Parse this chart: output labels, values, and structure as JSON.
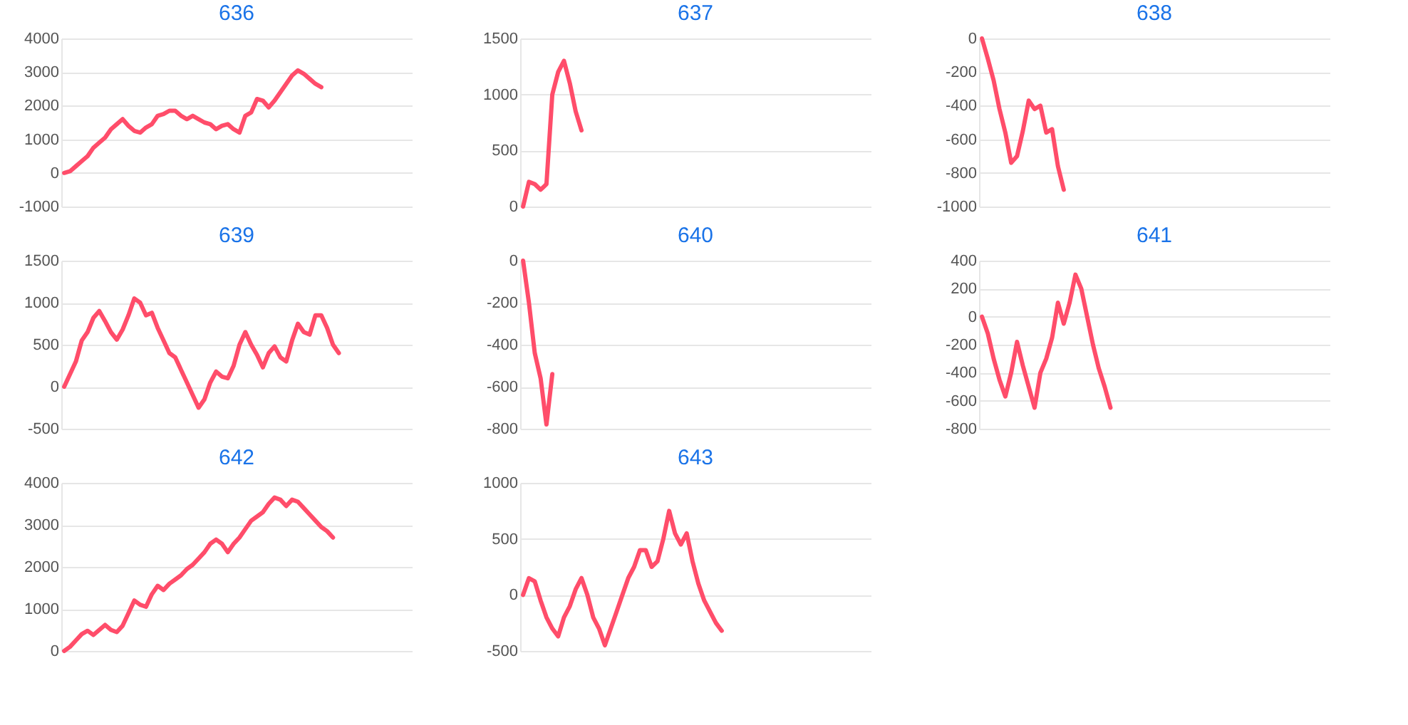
{
  "chart_data": [
    {
      "type": "line",
      "title": "636",
      "grid": "y",
      "tick_labels": "y",
      "ylim": [
        -1000,
        4000
      ],
      "yticks": [
        -1000,
        0,
        1000,
        2000,
        3000,
        4000
      ],
      "categories": [
        null,
        null,
        null,
        null,
        null,
        null,
        null,
        null,
        null,
        null,
        null,
        null,
        null,
        null,
        null,
        null,
        null,
        null,
        null,
        null,
        null,
        null,
        null,
        null,
        null,
        null,
        null,
        null,
        null,
        null,
        null,
        null,
        null,
        null,
        null,
        null,
        null,
        null,
        null,
        null,
        null,
        null,
        null,
        null,
        null,
        null,
        null,
        null,
        null,
        null,
        null,
        null,
        null,
        null,
        null,
        null,
        null,
        null,
        null,
        null
      ],
      "series": [
        {
          "color": "#ff4d6a",
          "values": [
            0,
            50,
            200,
            350,
            500,
            750,
            900,
            1050,
            1300,
            1450,
            1600,
            1400,
            1250,
            1200,
            1350,
            1450,
            1700,
            1750,
            1850,
            1850,
            1700,
            1600,
            1700,
            1600,
            1500,
            1450,
            1300,
            1400,
            1450,
            1300,
            1200,
            1700,
            1800,
            2200,
            2150,
            1950,
            2150,
            2400,
            2650,
            2900,
            3050,
            2950,
            2800,
            2650,
            2550,
            null,
            null,
            null,
            null,
            null,
            null,
            null,
            null,
            null,
            null,
            null,
            null,
            null,
            null,
            null
          ]
        }
      ]
    },
    {
      "type": "line",
      "title": "637",
      "grid": "y",
      "tick_labels": "y",
      "ylim": [
        0,
        1500
      ],
      "yticks": [
        0,
        500,
        1000,
        1500
      ],
      "categories": [
        null,
        null,
        null,
        null,
        null,
        null,
        null,
        null,
        null,
        null,
        null,
        null,
        null,
        null,
        null,
        null,
        null,
        null,
        null,
        null,
        null,
        null,
        null,
        null,
        null,
        null,
        null,
        null,
        null,
        null,
        null,
        null,
        null,
        null,
        null,
        null,
        null,
        null,
        null,
        null,
        null,
        null,
        null,
        null,
        null,
        null,
        null,
        null,
        null,
        null,
        null,
        null,
        null,
        null,
        null,
        null,
        null,
        null,
        null,
        null
      ],
      "series": [
        {
          "color": "#ff4d6a",
          "values": [
            0,
            220,
            200,
            150,
            200,
            1000,
            1200,
            1300,
            1100,
            850,
            680,
            null,
            null,
            null,
            null,
            null,
            null,
            null,
            null,
            null,
            null,
            null,
            null,
            null,
            null,
            null,
            null,
            null,
            null,
            null,
            null,
            null,
            null,
            null,
            null,
            null,
            null,
            null,
            null,
            null,
            null,
            null,
            null,
            null,
            null,
            null,
            null,
            null,
            null,
            null,
            null,
            null,
            null,
            null,
            null,
            null,
            null,
            null,
            null,
            null
          ]
        }
      ]
    },
    {
      "type": "line",
      "title": "638",
      "grid": "y",
      "tick_labels": "y",
      "ylim": [
        -1000,
        0
      ],
      "yticks": [
        -1000,
        -800,
        -600,
        -400,
        -200,
        0
      ],
      "categories": [
        null,
        null,
        null,
        null,
        null,
        null,
        null,
        null,
        null,
        null,
        null,
        null,
        null,
        null,
        null,
        null,
        null,
        null,
        null,
        null,
        null,
        null,
        null,
        null,
        null,
        null,
        null,
        null,
        null,
        null,
        null,
        null,
        null,
        null,
        null,
        null,
        null,
        null,
        null,
        null,
        null,
        null,
        null,
        null,
        null,
        null,
        null,
        null,
        null,
        null,
        null,
        null,
        null,
        null,
        null,
        null,
        null,
        null,
        null,
        null
      ],
      "series": [
        {
          "color": "#ff4d6a",
          "values": [
            0,
            -120,
            -250,
            -420,
            -560,
            -740,
            -700,
            -550,
            -370,
            -420,
            -400,
            -560,
            -540,
            -760,
            -900,
            null,
            null,
            null,
            null,
            null,
            null,
            null,
            null,
            null,
            null,
            null,
            null,
            null,
            null,
            null,
            null,
            null,
            null,
            null,
            null,
            null,
            null,
            null,
            null,
            null,
            null,
            null,
            null,
            null,
            null,
            null,
            null,
            null,
            null,
            null,
            null,
            null,
            null,
            null,
            null,
            null,
            null,
            null,
            null,
            null
          ]
        }
      ]
    },
    {
      "type": "line",
      "title": "639",
      "grid": "y",
      "tick_labels": "y",
      "ylim": [
        -500,
        1500
      ],
      "yticks": [
        -500,
        0,
        500,
        1000,
        1500
      ],
      "categories": [
        null,
        null,
        null,
        null,
        null,
        null,
        null,
        null,
        null,
        null,
        null,
        null,
        null,
        null,
        null,
        null,
        null,
        null,
        null,
        null,
        null,
        null,
        null,
        null,
        null,
        null,
        null,
        null,
        null,
        null,
        null,
        null,
        null,
        null,
        null,
        null,
        null,
        null,
        null,
        null,
        null,
        null,
        null,
        null,
        null,
        null,
        null,
        null,
        null,
        null,
        null,
        null,
        null,
        null,
        null,
        null,
        null,
        null,
        null,
        null
      ],
      "series": [
        {
          "color": "#ff4d6a",
          "values": [
            0,
            150,
            300,
            550,
            650,
            820,
            900,
            780,
            650,
            560,
            680,
            850,
            1050,
            1000,
            850,
            880,
            700,
            550,
            400,
            350,
            200,
            50,
            -100,
            -250,
            -150,
            50,
            180,
            120,
            100,
            250,
            500,
            650,
            500,
            380,
            230,
            400,
            480,
            350,
            300,
            550,
            750,
            650,
            620,
            850,
            850,
            700,
            500,
            400,
            null,
            null,
            null,
            null,
            null,
            null,
            null,
            null,
            null,
            null,
            null,
            null
          ]
        }
      ]
    },
    {
      "type": "line",
      "title": "640",
      "grid": "y",
      "tick_labels": "y",
      "ylim": [
        -800,
        0
      ],
      "yticks": [
        -800,
        -600,
        -400,
        -200,
        0
      ],
      "categories": [
        null,
        null,
        null,
        null,
        null,
        null,
        null,
        null,
        null,
        null,
        null,
        null,
        null,
        null,
        null,
        null,
        null,
        null,
        null,
        null,
        null,
        null,
        null,
        null,
        null,
        null,
        null,
        null,
        null,
        null,
        null,
        null,
        null,
        null,
        null,
        null,
        null,
        null,
        null,
        null,
        null,
        null,
        null,
        null,
        null,
        null,
        null,
        null,
        null,
        null,
        null,
        null,
        null,
        null,
        null,
        null,
        null,
        null,
        null,
        null
      ],
      "series": [
        {
          "color": "#ff4d6a",
          "values": [
            0,
            -200,
            -440,
            -560,
            -780,
            -540,
            null,
            null,
            null,
            null,
            null,
            null,
            null,
            null,
            null,
            null,
            null,
            null,
            null,
            null,
            null,
            null,
            null,
            null,
            null,
            null,
            null,
            null,
            null,
            null,
            null,
            null,
            null,
            null,
            null,
            null,
            null,
            null,
            null,
            null,
            null,
            null,
            null,
            null,
            null,
            null,
            null,
            null,
            null,
            null,
            null,
            null,
            null,
            null,
            null,
            null,
            null,
            null,
            null,
            null
          ]
        }
      ]
    },
    {
      "type": "line",
      "title": "641",
      "grid": "y",
      "tick_labels": "y",
      "ylim": [
        -800,
        400
      ],
      "yticks": [
        -800,
        -600,
        -400,
        -200,
        0,
        200,
        400
      ],
      "categories": [
        null,
        null,
        null,
        null,
        null,
        null,
        null,
        null,
        null,
        null,
        null,
        null,
        null,
        null,
        null,
        null,
        null,
        null,
        null,
        null,
        null,
        null,
        null,
        null,
        null,
        null,
        null,
        null,
        null,
        null,
        null,
        null,
        null,
        null,
        null,
        null,
        null,
        null,
        null,
        null,
        null,
        null,
        null,
        null,
        null,
        null,
        null,
        null,
        null,
        null,
        null,
        null,
        null,
        null,
        null,
        null,
        null,
        null,
        null,
        null
      ],
      "series": [
        {
          "color": "#ff4d6a",
          "values": [
            0,
            -120,
            -300,
            -450,
            -570,
            -400,
            -180,
            -350,
            -500,
            -650,
            -400,
            -300,
            -150,
            100,
            -50,
            100,
            300,
            200,
            0,
            -200,
            -370,
            -500,
            -650,
            null,
            null,
            null,
            null,
            null,
            null,
            null,
            null,
            null,
            null,
            null,
            null,
            null,
            null,
            null,
            null,
            null,
            null,
            null,
            null,
            null,
            null,
            null,
            null,
            null,
            null,
            null,
            null,
            null,
            null,
            null,
            null,
            null,
            null,
            null,
            null,
            null
          ]
        }
      ]
    },
    {
      "type": "line",
      "title": "642",
      "grid": "y",
      "tick_labels": "y",
      "ylim": [
        0,
        4000
      ],
      "yticks": [
        0,
        1000,
        2000,
        3000,
        4000
      ],
      "categories": [
        null,
        null,
        null,
        null,
        null,
        null,
        null,
        null,
        null,
        null,
        null,
        null,
        null,
        null,
        null,
        null,
        null,
        null,
        null,
        null,
        null,
        null,
        null,
        null,
        null,
        null,
        null,
        null,
        null,
        null,
        null,
        null,
        null,
        null,
        null,
        null,
        null,
        null,
        null,
        null,
        null,
        null,
        null,
        null,
        null,
        null,
        null,
        null,
        null,
        null,
        null,
        null,
        null,
        null,
        null,
        null,
        null,
        null,
        null,
        null
      ],
      "series": [
        {
          "color": "#ff4d6a",
          "values": [
            0,
            100,
            250,
            400,
            480,
            380,
            500,
            620,
            500,
            450,
            600,
            900,
            1200,
            1100,
            1050,
            1350,
            1550,
            1450,
            1600,
            1700,
            1800,
            1950,
            2050,
            2200,
            2350,
            2550,
            2650,
            2550,
            2350,
            2550,
            2700,
            2900,
            3100,
            3200,
            3300,
            3500,
            3650,
            3600,
            3450,
            3600,
            3550,
            3400,
            3250,
            3100,
            2950,
            2850,
            2700,
            null,
            null,
            null,
            null,
            null,
            null,
            null,
            null,
            null,
            null,
            null,
            null,
            null
          ]
        }
      ]
    },
    {
      "type": "line",
      "title": "643",
      "grid": "y",
      "tick_labels": "y",
      "ylim": [
        -500,
        1000
      ],
      "yticks": [
        -500,
        0,
        500,
        1000
      ],
      "categories": [
        null,
        null,
        null,
        null,
        null,
        null,
        null,
        null,
        null,
        null,
        null,
        null,
        null,
        null,
        null,
        null,
        null,
        null,
        null,
        null,
        null,
        null,
        null,
        null,
        null,
        null,
        null,
        null,
        null,
        null,
        null,
        null,
        null,
        null,
        null,
        null,
        null,
        null,
        null,
        null,
        null,
        null,
        null,
        null,
        null,
        null,
        null,
        null,
        null,
        null,
        null,
        null,
        null,
        null,
        null,
        null,
        null,
        null,
        null,
        null
      ],
      "series": [
        {
          "color": "#ff4d6a",
          "values": [
            0,
            150,
            120,
            -50,
            -200,
            -300,
            -370,
            -200,
            -100,
            50,
            150,
            0,
            -200,
            -300,
            -450,
            -300,
            -150,
            0,
            150,
            250,
            400,
            400,
            250,
            300,
            500,
            750,
            550,
            450,
            550,
            300,
            100,
            -50,
            -150,
            -250,
            -320,
            null,
            null,
            null,
            null,
            null,
            null,
            null,
            null,
            null,
            null,
            null,
            null,
            null,
            null,
            null,
            null,
            null,
            null,
            null,
            null,
            null,
            null,
            null,
            null,
            null
          ]
        }
      ]
    }
  ]
}
